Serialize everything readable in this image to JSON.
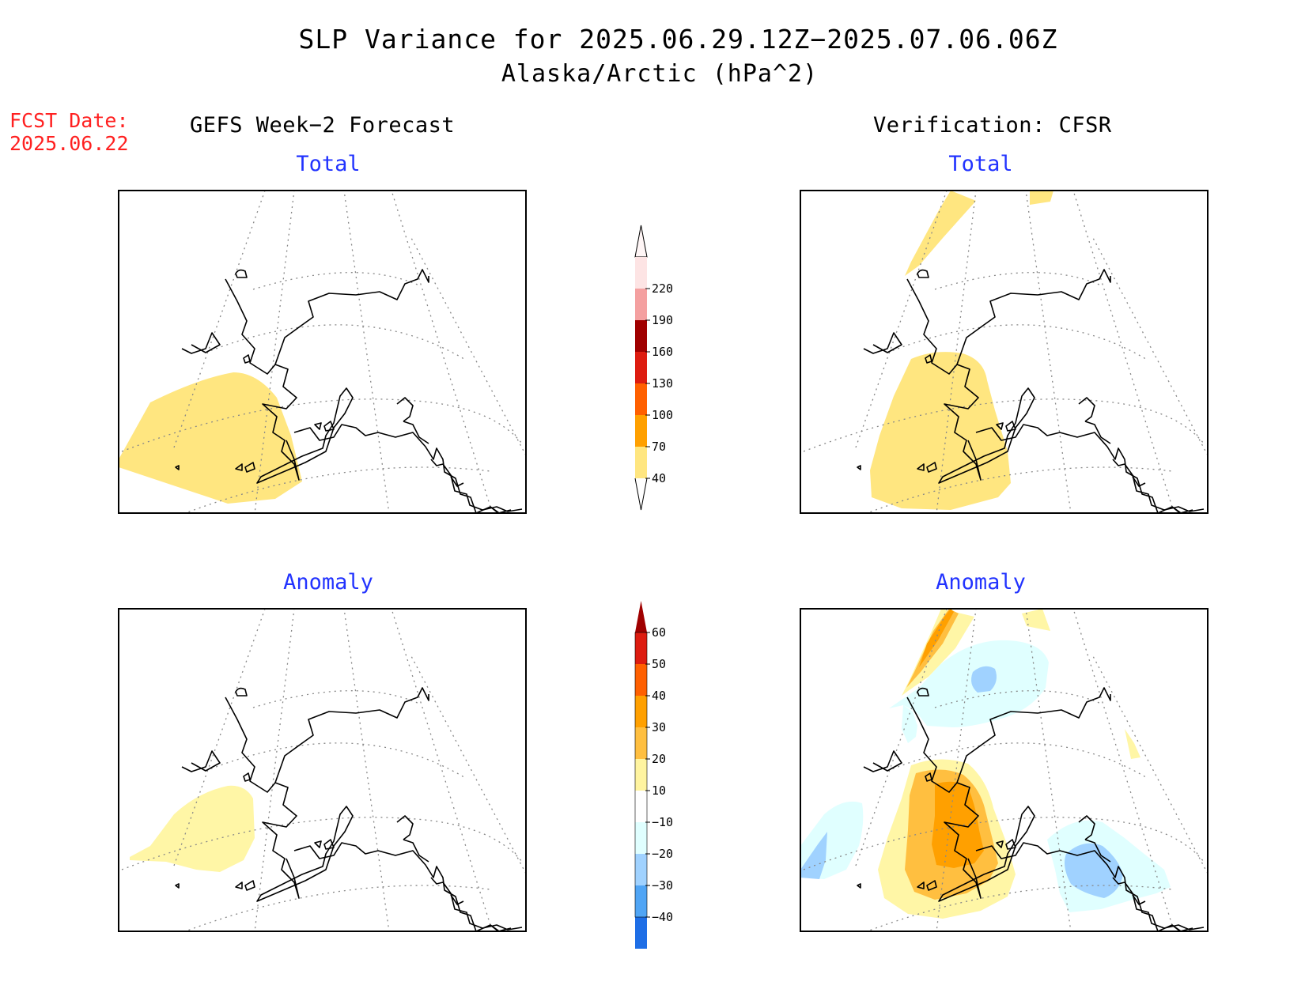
{
  "title": "SLP Variance for 2025.06.29.12Z−2025.07.06.06Z",
  "subtitle": "Alaska/Arctic (hPa^2)",
  "forecast_date": {
    "label": "FCST Date:",
    "value": "2025.06.22"
  },
  "columns": {
    "left": "GEFS Week−2 Forecast",
    "right": "Verification: CFSR"
  },
  "panels": {
    "forecast_total": "Total",
    "forecast_anomaly": "Anomaly",
    "verification_total": "Total",
    "verification_anomaly": "Anomaly"
  },
  "colorbar_total": {
    "labels": [
      "220",
      "190",
      "160",
      "130",
      "100",
      "70",
      "40"
    ],
    "colors": [
      "#fde4e4",
      "#f4a0a0",
      "#a00000",
      "#dd1c10",
      "#ff6000",
      "#ffa000",
      "#ffe680"
    ]
  },
  "colorbar_anomaly": {
    "labels": [
      "60",
      "50",
      "40",
      "30",
      "20",
      "10",
      "−10",
      "−20",
      "−30",
      "−40"
    ],
    "colors": [
      "#a00000",
      "#dd1c10",
      "#ff6000",
      "#ffa000",
      "#ffbf40",
      "#fff4a0",
      "#ffffff",
      "#e0ffff",
      "#a0d2ff",
      "#50a5f5",
      "#1e6ee6"
    ]
  },
  "map_colors": {
    "total_40_70": "#ffe680",
    "anom_10_20": "#fff6a6",
    "anom_20_30": "#ffbf40",
    "anom_30_40": "#ffa000",
    "anom_m10_m20": "#e0ffff",
    "anom_m20_m30": "#a0d2ff",
    "anom_m30_m40": "#50a5f5"
  },
  "map_region": "Alaska/Arctic"
}
